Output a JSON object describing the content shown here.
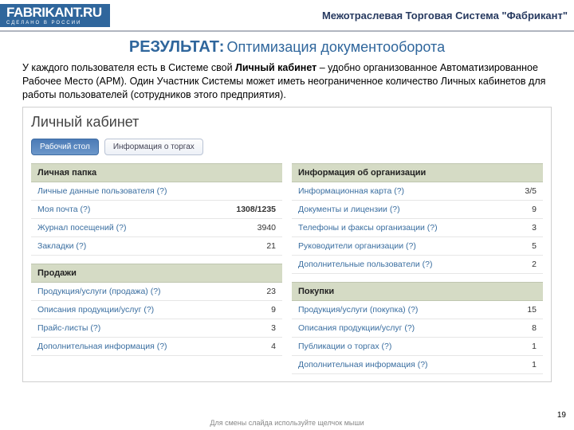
{
  "topbar": {
    "logo": "FABRIKANT.RU",
    "logo_sub": "СДЕЛАНО В РОССИИ",
    "brand": "Межотраслевая Торговая Система \"Фабрикант\""
  },
  "title": {
    "strong": "РЕЗУЛЬТАТ:",
    "rest": " Оптимизация документооборота"
  },
  "desc": {
    "p1_a": "У каждого пользователя есть в Системе свой ",
    "p1_b": "Личный кабинет",
    "p1_c": " – удобно организованное Автоматизированное Рабочее Место (АРМ). Один Участник Системы может иметь неограниченное количество Личных кабинетов для работы пользователей (сотрудников этого предприятия)."
  },
  "cab": {
    "title": "Личный кабинет",
    "tabs": {
      "active": "Рабочий стол",
      "other": "Информация о торгах"
    }
  },
  "left": {
    "sec1": {
      "h": "Личная папка",
      "rows": [
        {
          "label": "Личные данные пользователя (?)",
          "val": ""
        },
        {
          "label": "Моя почта (?)",
          "val": "1308/1235",
          "bold": true
        },
        {
          "label": "Журнал посещений (?)",
          "val": "3940"
        },
        {
          "label": "Закладки (?)",
          "val": "21"
        }
      ]
    },
    "sec2": {
      "h": "Продажи",
      "rows": [
        {
          "label": "Продукция/услуги (продажа) (?)",
          "val": "23"
        },
        {
          "label": "Описания продукции/услуг (?)",
          "val": "9"
        },
        {
          "label": "Прайс-листы (?)",
          "val": "3"
        },
        {
          "label": "Дополнительная информация (?)",
          "val": "4"
        }
      ]
    }
  },
  "right": {
    "sec1": {
      "h": "Информация об организации",
      "rows": [
        {
          "label": "Информационная карта (?)",
          "val": "3/5"
        },
        {
          "label": "Документы и лицензии (?)",
          "val": "9"
        },
        {
          "label": "Телефоны и факсы организации (?)",
          "val": "3"
        },
        {
          "label": "Руководители организации (?)",
          "val": "5"
        },
        {
          "label": "Дополнительные пользователи (?)",
          "val": "2"
        }
      ]
    },
    "sec2": {
      "h": "Покупки",
      "rows": [
        {
          "label": "Продукция/услуги (покупка) (?)",
          "val": "15"
        },
        {
          "label": "Описания продукции/услуг (?)",
          "val": "8"
        },
        {
          "label": "Публикации о торгах (?)",
          "val": "1"
        },
        {
          "label": "Дополнительная информация (?)",
          "val": "1"
        }
      ]
    }
  },
  "footer": {
    "hint": "Для смены слайда используйте щелчок мыши",
    "page": "19"
  }
}
